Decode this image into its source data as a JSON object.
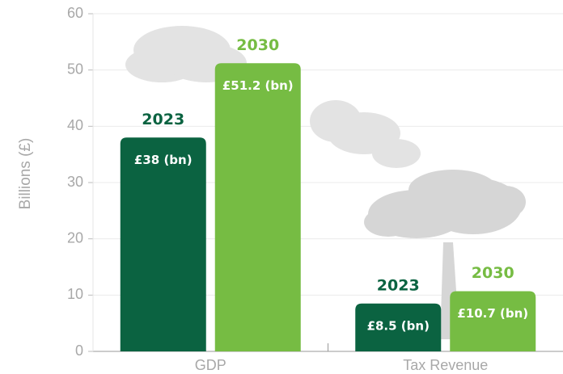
{
  "chart_data": {
    "type": "bar",
    "y_label": "Billions (£)",
    "categories": [
      "GDP",
      "Tax Revenue"
    ],
    "series": [
      {
        "name": "2023",
        "color": "#0b6341",
        "values": [
          38,
          8.5
        ],
        "value_labels": [
          "£38 (bn)",
          "£8.5 (bn)"
        ]
      },
      {
        "name": "2030",
        "color": "#76bc43",
        "values": [
          51.2,
          10.7
        ],
        "value_labels": [
          "£51.2 (bn)",
          "£10.7 (bn)"
        ]
      }
    ],
    "ylim": [
      0,
      60
    ],
    "yticks": [
      0,
      10,
      20,
      30,
      40,
      50,
      60
    ],
    "grid": true
  }
}
